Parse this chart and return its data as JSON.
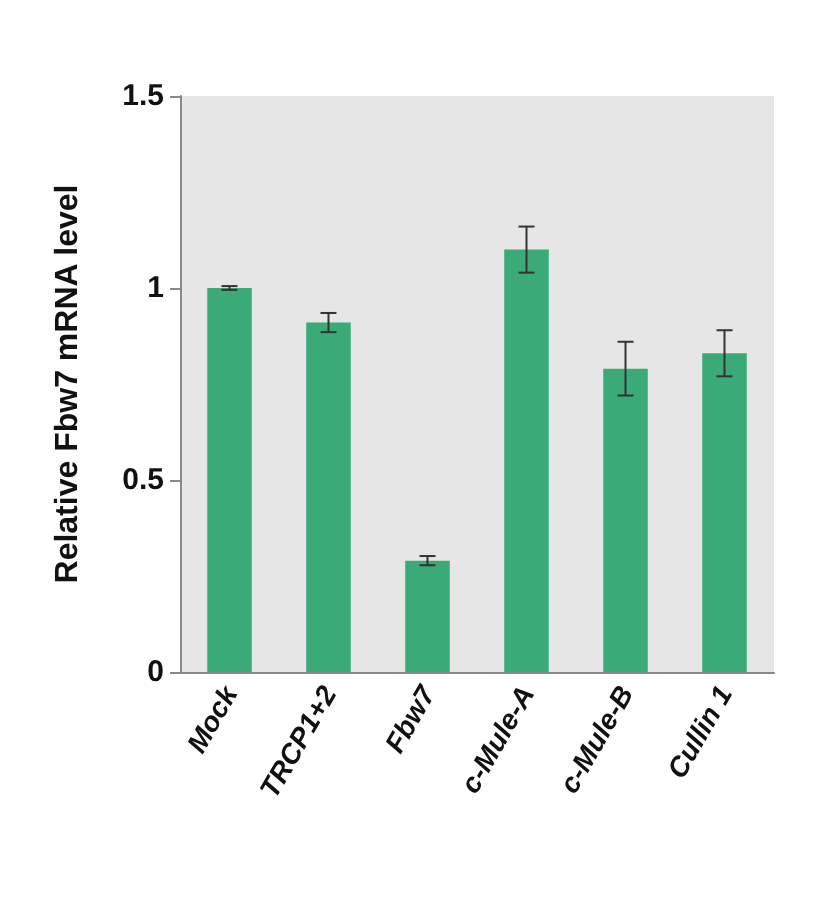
{
  "chart_data": {
    "type": "bar",
    "ylabel": "Relative Fbw7 mRNA level",
    "categories": [
      "Mock",
      "TRCP1+2",
      "Fbw7",
      "c-Mule-A",
      "c-Mule-B",
      "Cullin 1"
    ],
    "values": [
      1.0,
      0.91,
      0.29,
      1.1,
      0.79,
      0.83
    ],
    "errors": [
      0.005,
      0.025,
      0.012,
      0.06,
      0.07,
      0.06
    ],
    "color": "#3aaa78",
    "ylim": [
      0,
      1.5
    ],
    "yticks": [
      0,
      0.5,
      1,
      1.5
    ],
    "grid": false
  }
}
